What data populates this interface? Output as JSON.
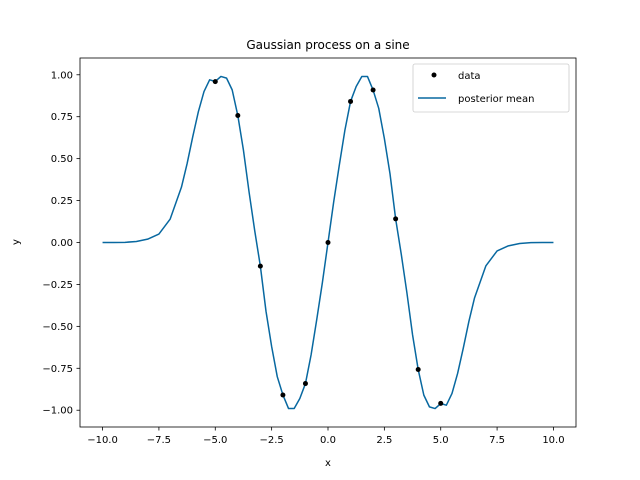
{
  "chart_data": {
    "type": "line",
    "title": "Gaussian process on a sine",
    "xlabel": "x",
    "ylabel": "y",
    "xlim": [
      -11.0,
      11.0
    ],
    "ylim": [
      -1.1,
      1.1
    ],
    "xticks": [
      -10.0,
      -7.5,
      -5.0,
      -2.5,
      0.0,
      2.5,
      5.0,
      7.5,
      10.0
    ],
    "xtick_labels": [
      "−10.0",
      "−7.5",
      "−5.0",
      "−2.5",
      "0.0",
      "2.5",
      "5.0",
      "7.5",
      "10.0"
    ],
    "yticks": [
      -1.0,
      -0.75,
      -0.5,
      -0.25,
      0.0,
      0.25,
      0.5,
      0.75,
      1.0
    ],
    "ytick_labels": [
      "−1.00",
      "−0.75",
      "−0.50",
      "−0.25",
      "0.00",
      "0.25",
      "0.50",
      "0.75",
      "1.00"
    ],
    "grid": false,
    "legend_position": "top-right",
    "series": [
      {
        "name": "data",
        "kind": "scatter",
        "color": "#000000",
        "x": [
          -5,
          -4,
          -3,
          -2,
          -1,
          0,
          1,
          2,
          3,
          4,
          5
        ],
        "y": [
          0.959,
          0.757,
          -0.141,
          -0.909,
          -0.841,
          0.0,
          0.841,
          0.909,
          0.141,
          -0.757,
          -0.959
        ]
      },
      {
        "name": "posterior mean",
        "kind": "line",
        "color": "#0868a0",
        "x": [
          -10,
          -9.5,
          -9,
          -8.5,
          -8,
          -7.5,
          -7,
          -6.5,
          -6.25,
          -6,
          -5.75,
          -5.5,
          -5.25,
          -5,
          -4.75,
          -4.5,
          -4.25,
          -4,
          -3.75,
          -3.5,
          -3.25,
          -3,
          -2.75,
          -2.5,
          -2.25,
          -2,
          -1.75,
          -1.5,
          -1.25,
          -1,
          -0.75,
          -0.5,
          -0.25,
          0,
          0.25,
          0.5,
          0.75,
          1,
          1.25,
          1.5,
          1.75,
          2,
          2.25,
          2.5,
          2.75,
          3,
          3.25,
          3.5,
          3.75,
          4,
          4.25,
          4.5,
          4.75,
          5,
          5.25,
          5.5,
          5.75,
          6,
          6.25,
          6.5,
          7,
          7.5,
          8,
          8.5,
          9,
          9.5,
          10
        ],
        "y": [
          0.0,
          0.0,
          0.001,
          0.006,
          0.02,
          0.05,
          0.14,
          0.33,
          0.47,
          0.63,
          0.78,
          0.9,
          0.97,
          0.96,
          0.99,
          0.98,
          0.91,
          0.757,
          0.55,
          0.3,
          0.07,
          -0.141,
          -0.41,
          -0.62,
          -0.8,
          -0.909,
          -0.99,
          -0.99,
          -0.93,
          -0.841,
          -0.67,
          -0.46,
          -0.24,
          0.0,
          0.24,
          0.46,
          0.67,
          0.841,
          0.93,
          0.99,
          0.99,
          0.909,
          0.8,
          0.62,
          0.41,
          0.141,
          -0.07,
          -0.3,
          -0.55,
          -0.757,
          -0.91,
          -0.98,
          -0.99,
          -0.96,
          -0.97,
          -0.9,
          -0.78,
          -0.63,
          -0.47,
          -0.33,
          -0.14,
          -0.05,
          -0.02,
          -0.006,
          -0.001,
          0.0,
          0.0
        ]
      }
    ]
  }
}
